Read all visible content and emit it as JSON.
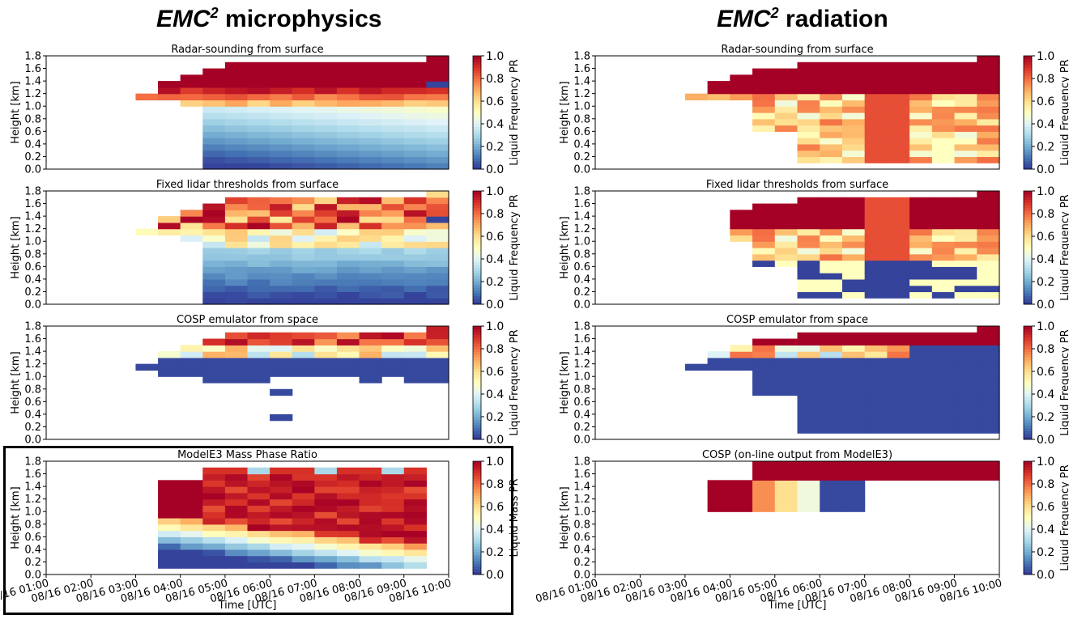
{
  "page": {
    "left_title": {
      "prefix": "EMC",
      "sup": "2",
      "suffix": " microphysics"
    },
    "right_title": {
      "prefix": "EMC",
      "sup": "2",
      "suffix": " radiation"
    },
    "highlight_note": "ModelE3 Mass Phase Ratio panel outlined"
  },
  "colors": {
    "colormap": "RdYlBu_r",
    "stops": [
      "#313695",
      "#4575b4",
      "#74add1",
      "#abd9e9",
      "#e0f3f8",
      "#ffffbf",
      "#fee090",
      "#fdae61",
      "#f46d43",
      "#d73027",
      "#a50026"
    ]
  },
  "chart_data": [
    {
      "type": "heatmap",
      "id": "mp-radar",
      "title": "Radar-sounding from surface",
      "ylabel": "Height [km]",
      "cbar_label": "Liquid Frequency PR",
      "ylim": [
        0,
        1.8
      ],
      "yticks": [
        "0.0",
        "0.2",
        "0.4",
        "0.6",
        "0.8",
        "1.0",
        "1.2",
        "1.4",
        "1.6",
        "1.8"
      ],
      "cbar_ticks": [
        "0.0",
        "0.2",
        "0.4",
        "0.6",
        "0.8",
        "1.0"
      ],
      "x_range": [
        "08/16 01:00",
        "08/16 10:00"
      ],
      "bins_x": 18,
      "bins_z": 18,
      "columns": [
        {
          "start": 4,
          "top": 1.2,
          "bottom": 1.1,
          "profile": "microphysics"
        },
        {
          "start": 5,
          "top": 1.4,
          "bottom": 1.1,
          "profile": "microphysics"
        },
        {
          "start": 6,
          "top": 1.5,
          "bottom": 1.0,
          "profile": "microphysics"
        },
        {
          "start": 7,
          "top": 1.6,
          "bottom": 0.0,
          "profile": "microphysics"
        },
        {
          "start": 8,
          "top": 1.7,
          "bottom": 0.0,
          "profile": "microphysics"
        },
        {
          "start": 17,
          "top": 1.8,
          "bottom": 0.0,
          "profile": "microphysics"
        }
      ],
      "xticks_shown": false
    },
    {
      "type": "heatmap",
      "id": "mp-lidar",
      "title": "Fixed lidar thresholds from surface",
      "ylabel": "Height [km]",
      "cbar_label": "Liquid Frequency PR",
      "ylim": [
        0,
        1.8
      ],
      "yticks": [
        "0.0",
        "0.2",
        "0.4",
        "0.6",
        "0.8",
        "1.0",
        "1.2",
        "1.4",
        "1.6",
        "1.8"
      ],
      "cbar_ticks": [
        "0.0",
        "0.2",
        "0.4",
        "0.6",
        "0.8",
        "1.0"
      ],
      "xticks_shown": false
    },
    {
      "type": "heatmap",
      "id": "mp-cosp",
      "title": "COSP emulator from space",
      "ylabel": "Height [km]",
      "cbar_label": "Liquid Frequency PR",
      "ylim": [
        0,
        1.8
      ],
      "yticks": [
        "0.0",
        "0.2",
        "0.4",
        "0.6",
        "0.8",
        "1.0",
        "1.2",
        "1.4",
        "1.6",
        "1.8"
      ],
      "cbar_ticks": [
        "0.0",
        "0.2",
        "0.4",
        "0.6",
        "0.8",
        "1.0"
      ],
      "xticks_shown": false
    },
    {
      "type": "heatmap",
      "id": "mp-modele3",
      "title": "ModelE3 Mass Phase Ratio",
      "ylabel": "Height [km]",
      "cbar_label": "Liquid Mass PR",
      "xlabel": "Time [UTC]",
      "ylim": [
        0,
        1.8
      ],
      "yticks": [
        "0.0",
        "0.2",
        "0.4",
        "0.6",
        "0.8",
        "1.0",
        "1.2",
        "1.4",
        "1.6",
        "1.8"
      ],
      "cbar_ticks": [
        "0.0",
        "0.2",
        "0.4",
        "0.6",
        "0.8",
        "1.0"
      ],
      "xticks": [
        "08/16 01:00",
        "08/16 02:00",
        "08/16 03:00",
        "08/16 04:00",
        "08/16 05:00",
        "08/16 06:00",
        "08/16 07:00",
        "08/16 08:00",
        "08/16 09:00",
        "08/16 10:00"
      ],
      "xticks_shown": true
    },
    {
      "type": "heatmap",
      "id": "rad-radar",
      "title": "Radar-sounding from surface",
      "ylabel": "Height [km]",
      "cbar_label": "Liquid Frequency PR",
      "ylim": [
        0,
        1.8
      ],
      "yticks": [
        "0.0",
        "0.2",
        "0.4",
        "0.6",
        "0.8",
        "1.0",
        "1.2",
        "1.4",
        "1.6",
        "1.8"
      ],
      "cbar_ticks": [
        "0.0",
        "0.2",
        "0.4",
        "0.6",
        "0.8",
        "1.0"
      ],
      "xticks_shown": false
    },
    {
      "type": "heatmap",
      "id": "rad-lidar",
      "title": "Fixed lidar thresholds from surface",
      "ylabel": "Height [km]",
      "cbar_label": "Liquid Frequency PR",
      "ylim": [
        0,
        1.8
      ],
      "yticks": [
        "0.0",
        "0.2",
        "0.4",
        "0.6",
        "0.8",
        "1.0",
        "1.2",
        "1.4",
        "1.6",
        "1.8"
      ],
      "cbar_ticks": [
        "0.0",
        "0.2",
        "0.4",
        "0.6",
        "0.8",
        "1.0"
      ],
      "xticks_shown": false
    },
    {
      "type": "heatmap",
      "id": "rad-cosp",
      "title": "COSP emulator from space",
      "ylabel": "Height [km]",
      "cbar_label": "Liquid Frequency PR",
      "ylim": [
        0,
        1.8
      ],
      "yticks": [
        "0.0",
        "0.2",
        "0.4",
        "0.6",
        "0.8",
        "1.0",
        "1.2",
        "1.4",
        "1.6",
        "1.8"
      ],
      "cbar_ticks": [
        "0.0",
        "0.2",
        "0.4",
        "0.6",
        "0.8",
        "1.0"
      ],
      "xticks_shown": false
    },
    {
      "type": "heatmap",
      "id": "rad-online",
      "title": "COSP (on-line output from ModelE3)",
      "ylabel": "Height [km]",
      "cbar_label": "Liquid Frequency PR",
      "xlabel": "Time [UTC]",
      "ylim": [
        0,
        1.8
      ],
      "yticks": [
        "0.0",
        "0.2",
        "0.4",
        "0.6",
        "0.8",
        "1.0",
        "1.2",
        "1.4",
        "1.6",
        "1.8"
      ],
      "cbar_ticks": [
        "0.0",
        "0.2",
        "0.4",
        "0.6",
        "0.8",
        "1.0"
      ],
      "xticks": [
        "08/16 01:00",
        "08/16 02:00",
        "08/16 03:00",
        "08/16 04:00",
        "08/16 05:00",
        "08/16 06:00",
        "08/16 07:00",
        "08/16 08:00",
        "08/16 09:00",
        "08/16 10:00"
      ],
      "xticks_shown": true
    }
  ]
}
